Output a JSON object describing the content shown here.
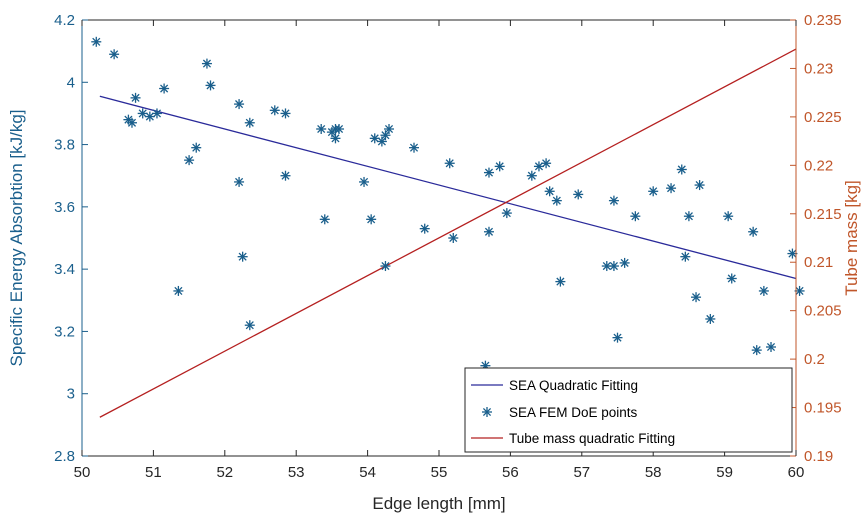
{
  "chart_data": {
    "type": "scatter",
    "title": "",
    "xlabel": "Edge length [mm]",
    "ylabel_left": "Specific Energy Absorbtion [kJ/kg]",
    "ylabel_right": "Tube mass [kg]",
    "xlim": [
      50,
      60
    ],
    "ylim_left": [
      2.8,
      4.2
    ],
    "ylim_right": [
      0.19,
      0.235
    ],
    "x_ticks": [
      "50",
      "51",
      "52",
      "53",
      "54",
      "55",
      "56",
      "57",
      "58",
      "59",
      "60"
    ],
    "y_left_ticks": [
      "2.8",
      "3",
      "3.2",
      "3.4",
      "3.6",
      "3.8",
      "4",
      "4.2"
    ],
    "y_right_ticks": [
      "0.19",
      "0.195",
      "0.2",
      "0.205",
      "0.21",
      "0.215",
      "0.22",
      "0.225",
      "0.23",
      "0.235"
    ],
    "grid": false,
    "legend_position": "bottom-right",
    "colors": {
      "left_axis": "#1a5f8c",
      "right_axis": "#c0562a",
      "sea_fit": "#2a2a9a",
      "points": "#1a5f8c",
      "mass_fit": "#b52020"
    },
    "series": [
      {
        "name": "SEA Quadratic Fitting",
        "kind": "line",
        "axis": "left",
        "x": [
          50.25,
          60.0
        ],
        "y": [
          3.955,
          3.37
        ]
      },
      {
        "name": "SEA FEM DoE points",
        "kind": "scatter",
        "axis": "left",
        "marker": "asterisk",
        "x": [
          50.2,
          50.45,
          50.7,
          50.65,
          50.75,
          50.85,
          50.95,
          51.05,
          51.15,
          51.35,
          51.5,
          51.6,
          51.75,
          51.8,
          52.2,
          52.2,
          52.25,
          52.35,
          52.35,
          52.7,
          52.85,
          52.85,
          53.35,
          53.4,
          53.5,
          53.55,
          53.55,
          53.6,
          53.95,
          54.05,
          54.1,
          54.2,
          54.25,
          54.25,
          54.3,
          54.65,
          54.8,
          55.15,
          55.2,
          55.65,
          55.7,
          55.7,
          55.85,
          55.95,
          56.3,
          56.4,
          56.5,
          56.55,
          56.65,
          56.7,
          56.95,
          57.35,
          57.45,
          57.45,
          57.5,
          57.6,
          57.75,
          58.0,
          58.25,
          58.4,
          58.45,
          58.5,
          58.6,
          58.65,
          58.8,
          59.05,
          59.1,
          59.4,
          59.45,
          59.55,
          59.65,
          59.95,
          60.05
        ],
        "y": [
          4.13,
          4.09,
          3.87,
          3.88,
          3.95,
          3.9,
          3.89,
          3.9,
          3.98,
          3.33,
          3.75,
          3.79,
          4.06,
          3.99,
          3.93,
          3.68,
          3.44,
          3.87,
          3.22,
          3.91,
          3.9,
          3.7,
          3.85,
          3.56,
          3.84,
          3.82,
          3.85,
          3.85,
          3.68,
          3.56,
          3.82,
          3.81,
          3.41,
          3.83,
          3.85,
          3.79,
          3.53,
          3.74,
          3.5,
          3.09,
          3.52,
          3.71,
          3.73,
          3.58,
          3.7,
          3.73,
          3.74,
          3.65,
          3.62,
          3.36,
          3.64,
          3.41,
          3.41,
          3.62,
          3.18,
          3.42,
          3.57,
          3.65,
          3.66,
          3.72,
          3.44,
          3.57,
          3.31,
          3.67,
          3.24,
          3.57,
          3.37,
          3.52,
          3.14,
          3.33,
          3.15,
          3.45,
          3.33
        ]
      },
      {
        "name": "Tube mass quadratic Fitting",
        "kind": "line",
        "axis": "right",
        "x": [
          50.25,
          60.0
        ],
        "y": [
          0.194,
          0.232
        ]
      }
    ]
  }
}
